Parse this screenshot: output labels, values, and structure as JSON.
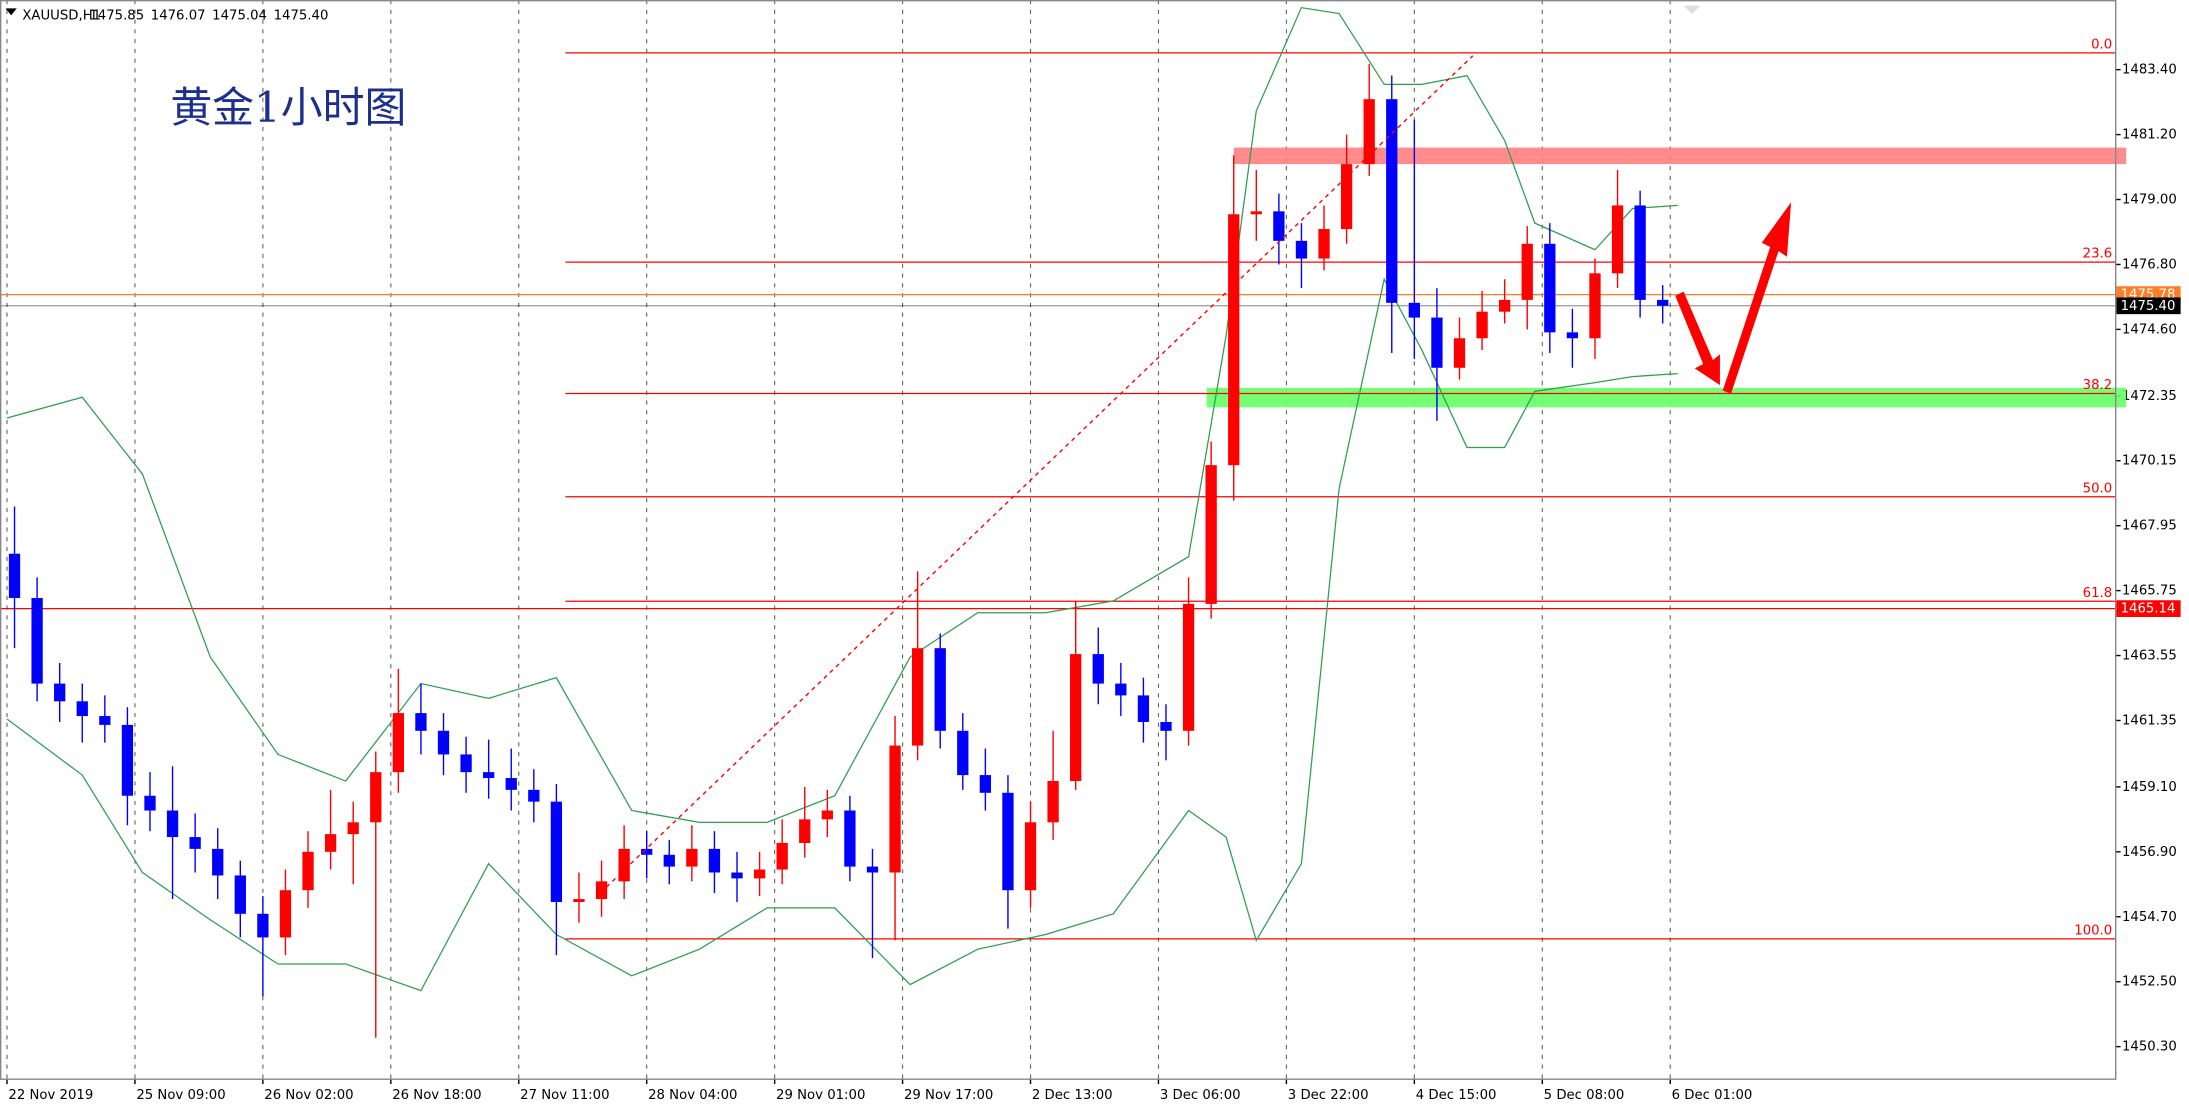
{
  "chart_data": {
    "type": "candlestick",
    "header": "XAUUSD,H1",
    "quote": [
      "1475.85",
      "1476.07",
      "1475.04",
      "1475.40"
    ],
    "title": "黄金1小时图",
    "up_color": "#ff0000",
    "down_color": "#0000ff",
    "x": [
      1,
      4,
      7,
      10,
      13,
      16,
      19,
      22,
      25,
      28,
      31,
      34,
      37,
      40,
      43,
      46,
      49,
      52,
      55,
      58,
      61,
      64,
      67,
      70,
      73,
      76,
      79,
      82,
      85,
      88,
      91,
      94,
      97,
      100,
      103,
      106,
      109,
      112,
      115,
      118,
      121,
      124,
      127,
      130,
      133,
      136,
      139,
      142,
      145,
      148,
      151,
      154,
      157,
      160,
      163,
      166,
      169,
      172,
      175,
      178,
      181,
      184,
      187,
      190,
      193,
      196,
      199,
      202,
      205,
      208,
      211,
      214,
      217,
      220
    ],
    "open": [
      1467.0,
      1465.5,
      1462.6,
      1462.0,
      1461.5,
      1461.2,
      1458.8,
      1458.3,
      1457.4,
      1457.0,
      1456.1,
      1454.8,
      1454.0,
      1455.6,
      1456.9,
      1457.5,
      1457.9,
      1459.6,
      1461.6,
      1461.0,
      1460.2,
      1459.6,
      1459.4,
      1459.0,
      1458.6,
      1455.2,
      1455.3,
      1455.9,
      1457.0,
      1456.8,
      1456.4,
      1457.0,
      1456.2,
      1456.0,
      1456.3,
      1457.2,
      1458.0,
      1458.3,
      1456.4,
      1456.2,
      1460.5,
      1463.8,
      1461.0,
      1459.5,
      1458.9,
      1455.6,
      1457.9,
      1459.3,
      1463.6,
      1462.6,
      1462.2,
      1461.3,
      1461.0,
      1465.3,
      1470.0,
      1478.5,
      1478.6,
      1477.6,
      1477.0,
      1478.0,
      1480.2,
      1482.4,
      1475.5,
      1475.0,
      1473.3,
      1474.3,
      1475.2,
      1475.6,
      1477.5,
      1474.5,
      1474.3,
      1476.5,
      1478.8,
      1475.6
    ],
    "high": [
      1468.6,
      1466.2,
      1463.3,
      1462.6,
      1462.2,
      1461.8,
      1459.6,
      1459.8,
      1458.2,
      1457.7,
      1456.6,
      1455.4,
      1456.3,
      1457.6,
      1459.0,
      1458.6,
      1460.3,
      1463.1,
      1462.6,
      1461.6,
      1460.8,
      1460.7,
      1460.4,
      1459.7,
      1459.2,
      1456.2,
      1456.6,
      1457.8,
      1457.6,
      1457.3,
      1457.8,
      1457.6,
      1456.9,
      1456.9,
      1458.0,
      1459.1,
      1459.0,
      1458.8,
      1457.0,
      1461.5,
      1466.4,
      1464.3,
      1461.6,
      1460.4,
      1459.5,
      1458.6,
      1461.0,
      1465.4,
      1464.5,
      1463.3,
      1462.8,
      1461.9,
      1466.2,
      1470.8,
      1480.5,
      1480.0,
      1479.2,
      1478.2,
      1478.8,
      1481.2,
      1483.6,
      1483.2,
      1481.7,
      1476.0,
      1475.0,
      1475.9,
      1476.3,
      1478.1,
      1478.2,
      1475.3,
      1477.0,
      1480.0,
      1479.3,
      1476.1
    ],
    "low": [
      1463.8,
      1462.0,
      1461.3,
      1460.6,
      1460.6,
      1457.8,
      1457.6,
      1455.3,
      1456.2,
      1455.3,
      1454.0,
      1452.0,
      1453.4,
      1455.0,
      1456.3,
      1455.8,
      1450.6,
      1458.9,
      1460.2,
      1459.5,
      1458.9,
      1458.7,
      1458.3,
      1457.9,
      1453.4,
      1454.5,
      1454.7,
      1455.3,
      1456.0,
      1455.8,
      1455.9,
      1455.5,
      1455.2,
      1455.4,
      1455.8,
      1456.7,
      1457.4,
      1455.9,
      1453.3,
      1453.9,
      1460.0,
      1460.4,
      1459.0,
      1458.3,
      1454.3,
      1455.0,
      1457.3,
      1459.0,
      1461.9,
      1461.5,
      1460.6,
      1460.0,
      1460.5,
      1464.8,
      1468.8,
      1477.6,
      1476.8,
      1476.0,
      1476.6,
      1477.5,
      1479.8,
      1473.8,
      1473.6,
      1471.5,
      1472.9,
      1473.9,
      1474.8,
      1474.6,
      1473.8,
      1473.3,
      1473.6,
      1476.0,
      1475.0,
      1474.8
    ],
    "close": [
      1465.5,
      1462.6,
      1462.0,
      1461.5,
      1461.2,
      1458.8,
      1458.3,
      1457.4,
      1457.0,
      1456.1,
      1454.8,
      1454.0,
      1455.6,
      1456.9,
      1457.5,
      1457.9,
      1459.6,
      1461.6,
      1461.0,
      1460.2,
      1459.6,
      1459.4,
      1459.0,
      1458.6,
      1455.2,
      1455.3,
      1455.9,
      1457.0,
      1456.8,
      1456.4,
      1457.0,
      1456.2,
      1456.0,
      1456.3,
      1457.2,
      1458.0,
      1458.3,
      1456.4,
      1456.2,
      1460.5,
      1463.8,
      1461.0,
      1459.5,
      1458.9,
      1455.6,
      1457.9,
      1459.3,
      1463.6,
      1462.6,
      1462.2,
      1461.3,
      1461.0,
      1465.3,
      1470.0,
      1478.5,
      1478.6,
      1477.6,
      1477.0,
      1478.0,
      1480.2,
      1482.4,
      1475.5,
      1475.0,
      1473.3,
      1474.3,
      1475.2,
      1475.6,
      1477.5,
      1474.5,
      1474.3,
      1476.5,
      1478.8,
      1475.6,
      1475.4
    ],
    "bands": {
      "color": "#2e9e4f",
      "x": [
        0,
        10,
        18,
        27,
        36,
        45,
        55,
        64,
        73,
        83,
        92,
        101,
        110,
        120,
        129,
        138,
        147,
        157,
        162,
        166,
        172,
        177,
        183,
        188,
        194,
        199,
        203,
        211,
        216,
        222
      ],
      "upper": [
        1471.6,
        1472.3,
        1469.7,
        1463.5,
        1460.2,
        1459.3,
        1462.6,
        1462.1,
        1462.8,
        1458.3,
        1457.9,
        1457.9,
        1458.8,
        1463.5,
        1465.0,
        1465.0,
        1465.4,
        1466.9,
        1474.4,
        1482.0,
        1485.5,
        1485.3,
        1482.9,
        1482.9,
        1483.2,
        1481.0,
        1478.2,
        1477.3,
        1478.7,
        1478.8
      ],
      "lower": [
        1461.4,
        1459.5,
        1456.2,
        1454.6,
        1453.1,
        1453.1,
        1452.2,
        1456.5,
        1454.1,
        1452.7,
        1453.6,
        1455.0,
        1455.0,
        1452.4,
        1453.6,
        1454.1,
        1454.8,
        1458.3,
        1457.4,
        1453.9,
        1456.5,
        1469.2,
        1476.3,
        1473.9,
        1470.6,
        1470.6,
        1472.5,
        1472.8,
        1473.0,
        1473.1
      ]
    },
    "fib_start_x": 74.2,
    "fib_color": "#ff0000",
    "fib_levels": [
      {
        "label": "0.0",
        "price": 1483.97
      },
      {
        "label": "23.6",
        "price": 1476.88
      },
      {
        "label": "38.2",
        "price": 1472.43
      },
      {
        "label": "50.0",
        "price": 1468.93
      },
      {
        "label": "61.8",
        "price": 1465.39
      },
      {
        "label": "100.0",
        "price": 1453.95
      }
    ],
    "hlines": [
      {
        "price": 1475.78,
        "label": "1475.78",
        "color": "#ff7f27"
      },
      {
        "price": 1475.4,
        "label": "1475.40",
        "color": "#000000"
      },
      {
        "price": 1465.14,
        "label": "1465.14",
        "color": "#ff0000"
      }
    ],
    "zones": [
      {
        "from": 1480.2,
        "to": 1480.76,
        "start_x": 163,
        "color": "#ff8080"
      },
      {
        "from": 1471.96,
        "to": 1472.62,
        "start_x": 159.4,
        "color": "#66ff66"
      }
    ],
    "xlim": [
      -0.93,
      280.1
    ],
    "xticks": [
      {
        "value": 0,
        "label": "22 Nov 2019"
      },
      {
        "value": 17,
        "label": "25 Nov 09:00"
      },
      {
        "value": 34,
        "label": "26 Nov 02:00"
      },
      {
        "value": 51,
        "label": "26 Nov 18:00"
      },
      {
        "value": 68,
        "label": "27 Nov 11:00"
      },
      {
        "value": 85,
        "label": "28 Nov 04:00"
      },
      {
        "value": 102,
        "label": "29 Nov 01:00"
      },
      {
        "value": 119,
        "label": "29 Nov 17:00"
      },
      {
        "value": 136,
        "label": "2 Dec 13:00"
      },
      {
        "value": 153,
        "label": "3 Dec 06:00"
      },
      {
        "value": 170,
        "label": "3 Dec 22:00"
      },
      {
        "value": 187,
        "label": "4 Dec 15:00"
      },
      {
        "value": 204,
        "label": "5 Dec 08:00"
      },
      {
        "value": 221,
        "label": "6 Dec 01:00"
      }
    ],
    "ylim": [
      1449.22,
      1485.76
    ],
    "yticks": [
      {
        "value": 1483.4,
        "label": "1483.40"
      },
      {
        "value": 1481.2,
        "label": "1481.20"
      },
      {
        "value": 1479,
        "label": "1479.00"
      },
      {
        "value": 1476.8,
        "label": "1476.80"
      },
      {
        "value": 1474.6,
        "label": "1474.60"
      },
      {
        "value": 1472.35,
        "label": "1472.35"
      },
      {
        "value": 1470.15,
        "label": "1470.15"
      },
      {
        "value": 1467.95,
        "label": "1467.95"
      },
      {
        "value": 1465.75,
        "label": "1465.75"
      },
      {
        "value": 1463.55,
        "label": "1463.55"
      },
      {
        "value": 1461.35,
        "label": "1461.35"
      },
      {
        "value": 1459.1,
        "label": "1459.10"
      },
      {
        "value": 1456.9,
        "label": "1456.90"
      },
      {
        "value": 1454.7,
        "label": "1454.70"
      },
      {
        "value": 1452.5,
        "label": "1452.50"
      },
      {
        "value": 1450.3,
        "label": "1450.30"
      }
    ],
    "grid": true
  }
}
